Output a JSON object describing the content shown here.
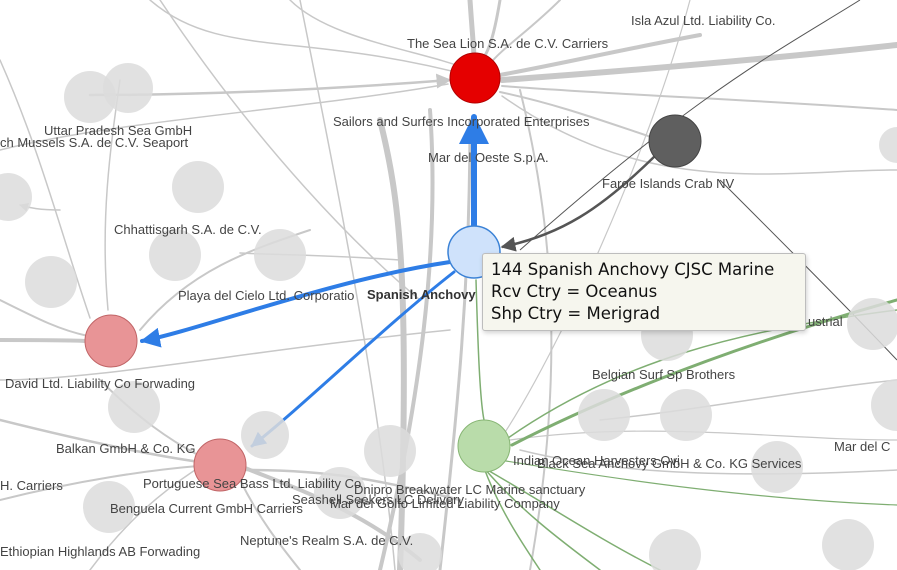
{
  "colors": {
    "edge_gray": "#c8c8c8",
    "edge_dark": "#555555",
    "edge_blue": "#2e7de6",
    "edge_green": "#7fae72",
    "node_gray": "#dcdcdc",
    "node_red": "#e50000",
    "node_pink": "#e89496",
    "node_lightblue": "#cfe2fb",
    "node_green": "#b9dcaa",
    "node_darkgray": "#5f5f5f"
  },
  "graph": {
    "nodes": [
      {
        "id": "sea-lion",
        "label": "The Sea Lion S.A. de C.V. Carriers",
        "role": "selected-target"
      },
      {
        "id": "spanish-anchovy",
        "label": "Spanish Anchovy",
        "role": "hovered"
      },
      {
        "id": "faroe",
        "label": "Faroe Islands Crab NV",
        "role": "source"
      },
      {
        "id": "david",
        "label": "David Ltd. Liability Co Forwading",
        "role": "target"
      },
      {
        "id": "portuguese",
        "label": "Portuguese Sea Bass Ltd. Liability Co",
        "role": "target"
      },
      {
        "id": "indian-ocean",
        "label": "Indian Ocean Harvesters Ovi",
        "role": "related"
      }
    ],
    "labels": [
      "Isla Azul Ltd. Liability Co.",
      "The Sea Lion S.A. de C.V. Carriers",
      "Uttar Pradesh Sea  GmbH",
      "ch Mussels S.A. de C.V. Seaport",
      "Sailors and Surfers Incorporated Enterprises",
      "Mar del Oeste S.p.A.",
      "Faroe Islands Crab NV",
      "Chhattisgarh   S.A. de C.V.",
      "Playa del Cielo Ltd. Corporatio",
      "ustrial",
      "David Ltd. Liability Co Forwading",
      "Belgian  Surf Sp Brothers",
      "Balkan  GmbH & Co. KG",
      "Mar del C",
      "Indian Ocean Harvesters Ovi",
      "Black Sea Anchovy  GmbH & Co. KG Services",
      "H. Carriers",
      "Portuguese Sea Bass Ltd. Liability Co",
      "Dnipro  Breakwater LC Marine sanctuary",
      "Seashell Seekers LC Delivery",
      "Mar del Golfo Limited Liability Company",
      "Benguela Current   GmbH Carriers",
      "Ethiopian Highlands  AB Forwading",
      "Neptune's Realm S.A. de C.V."
    ],
    "hovered_label": "Spanish Anchovy"
  },
  "tooltip": {
    "line1": "144 Spanish Anchovy CJSC Marine",
    "line2": "Rcv Ctry = Oceanus",
    "line3": "Shp Ctry = Merigrad"
  }
}
